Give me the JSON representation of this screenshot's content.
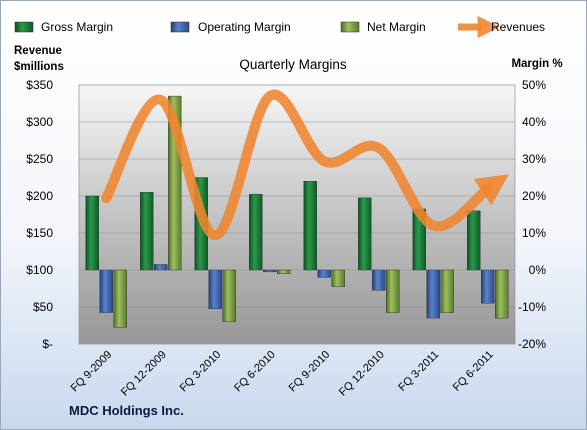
{
  "chart_data": {
    "type": "bar",
    "title": "Quarterly Margins",
    "company": "MDC Holdings Inc.",
    "ylabel_left": "Revenue\n$millions",
    "ylabel_right": "Margin %",
    "categories": [
      "FQ 9-2009",
      "FQ 12-2009",
      "FQ 3-2010",
      "FQ 6-2010",
      "FQ 9-2010",
      "FQ 12-2010",
      "FQ 3-2011",
      "FQ 6-2011"
    ],
    "series": [
      {
        "name": "Gross Margin",
        "kind": "bar",
        "axis": "right",
        "color": "#1f7a3c",
        "values": [
          20,
          21,
          25,
          20.5,
          24,
          19.5,
          16.5,
          16
        ]
      },
      {
        "name": "Operating Margin",
        "kind": "bar",
        "axis": "right",
        "color": "#3e64b0",
        "values": [
          -11.5,
          1.5,
          -10.5,
          -0.5,
          -2,
          -5.5,
          -13,
          -9
        ]
      },
      {
        "name": "Net Margin",
        "kind": "bar",
        "axis": "right",
        "color": "#7ea343",
        "values": [
          -15.5,
          47,
          -14,
          -1,
          -4.5,
          -11.5,
          -11.5,
          -13
        ]
      },
      {
        "name": "Revenues",
        "kind": "line",
        "axis": "left",
        "color": "#f0852e",
        "values": [
          197,
          330,
          147,
          335,
          247,
          265,
          160,
          210
        ]
      }
    ],
    "y_left": {
      "min": 0,
      "max": 350,
      "step": 50,
      "tick_labels": [
        "$-",
        "$50",
        "$100",
        "$150",
        "$200",
        "$250",
        "$300",
        "$350"
      ]
    },
    "y_right": {
      "min": -20,
      "max": 50,
      "step": 10,
      "tick_labels": [
        "-20%",
        "-10%",
        "0%",
        "10%",
        "20%",
        "30%",
        "40%",
        "50%"
      ]
    },
    "grid": true,
    "legend_position": "top"
  }
}
